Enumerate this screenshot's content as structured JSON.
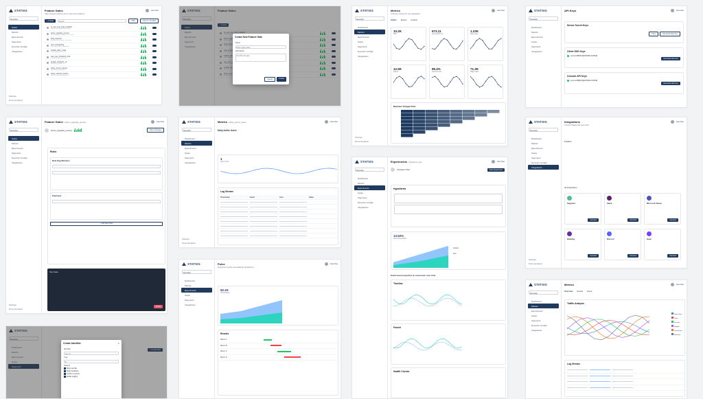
{
  "brand": {
    "name": "STATSIG"
  },
  "common": {
    "project_select": "Develop",
    "user_name": "Jane Doe",
    "user_role": "Admin",
    "settings": "Settings",
    "documentation": "Documentation"
  },
  "nav": [
    "Dashboard",
    "Metrics",
    "Experiments",
    "Gates",
    "Segments",
    "Dynamic Configs",
    "Integrations"
  ],
  "feature_gates": {
    "title": "Feature Gates",
    "subtitle": "Gate a feature behind a set of rules and conditions",
    "create_label": "+ Create",
    "search_placeholder": "Search...",
    "filter_label": "Filter",
    "sort_label": "Sort by: Created",
    "items": [
      {
        "name": "is_new_pay_load_enabled",
        "desc": "Enable new payload handling"
      },
      {
        "name": "show_upgrade_prompt",
        "desc": "Show upgrade prompt to free users"
      },
      {
        "name": "beta_features",
        "desc": "Enable beta features for testers"
      },
      {
        "name": "new_onboarding",
        "desc": "New onboarding experience"
      },
      {
        "name": "enable_dark_mode",
        "desc": "Dark mode for all users"
      },
      {
        "name": "use_new_checkout_flow",
        "desc": "Checkout flow redesign"
      },
      {
        "name": "enable_analytics_v2",
        "desc": "Analytics pipeline v2"
      },
      {
        "name": "show_promo_banner",
        "desc": "Holiday promo banner"
      },
      {
        "name": "show_referral_system",
        "desc": "Referral system entry point"
      }
    ]
  },
  "create_gate_modal": {
    "title": "Create New Feature Gate",
    "name_label": "Name",
    "name_placeholder": "Enter a gate name",
    "desc_label": "Description",
    "desc_placeholder": "Describe this gate",
    "cancel": "Cancel",
    "create": "Create"
  },
  "gate_detail": {
    "title": "Feature Gates",
    "crumb": "/ show_upgrade_prompt",
    "name": "show_upgrade_prompt",
    "save": "Save Changes",
    "rules_title": "Rules",
    "rule1": "Beta Flag Members",
    "rule2": "Employee",
    "add_rule": "+ Add New Rule",
    "console_title": "Test Gate",
    "console_btn": "Check"
  },
  "metrics": {
    "title": "Metrics",
    "subtitle": "Track key metrics for your application",
    "tabs": [
      "Charts",
      "Events",
      "Custom"
    ],
    "kpis": [
      {
        "value": "10.2K",
        "label": "DAU"
      },
      {
        "value": "573.11",
        "label": "Avg session (s)"
      },
      {
        "value": "1.23K",
        "label": "New users"
      },
      {
        "value": "12.5K",
        "label": "Events"
      },
      {
        "value": "95.4%",
        "label": "Success rate"
      },
      {
        "value": "71.3K",
        "label": "Page views"
      }
    ],
    "retention_title": "Retention Triangle Chart"
  },
  "sdk_keys": {
    "title": "API Keys",
    "server_title": "Server Secret Keys",
    "client_title": "Client SDK Keys",
    "console_title": "Console API Keys",
    "generate": "Generate New Key",
    "copy": "Copy",
    "key_sample": "secret-2xB9kfL0Q8vZTa81mXnP0qR"
  },
  "metric_detail": {
    "title": "Metrics",
    "crumb": "/ daily_active_users",
    "name": "Daily Active Users",
    "value": "1",
    "value_label": "User Count",
    "log_title": "Log Stream",
    "log_cols": [
      "Timestamp",
      "Event",
      "User",
      "Value"
    ]
  },
  "integrations": {
    "title": "Integrations",
    "subtitle": "Connect Statsig with your tools",
    "enabled": "Enabled",
    "all": "All Integrations",
    "cards": [
      {
        "name": "Segment",
        "color": "#52bd95"
      },
      {
        "name": "Slack",
        "color": "#611f69"
      },
      {
        "name": "Microsoft Teams",
        "color": "#4b53bc"
      },
      {
        "name": "Datadog",
        "color": "#632ca6"
      },
      {
        "name": "Discord",
        "color": "#5865f2"
      },
      {
        "name": "Heap",
        "color": "#7e3cff"
      }
    ],
    "connect": "Connect"
  },
  "experiment": {
    "title": "Experiments",
    "crumb": "/ checkout_test",
    "name": "Checkout Test",
    "start": "Start Experiment",
    "hypothesis_title": "Hypothesis",
    "lift_value": "13.52%",
    "lift_label": "Lift in conversions",
    "variant_a": "Control",
    "variant_b": "Test",
    "section_title": "Event-level properties & conversion over time",
    "timeline_title": "Timeline",
    "funnel_title": "Funnel",
    "health_title": "Health Checks"
  },
  "pulse": {
    "title": "Pulse",
    "subtitle": "Experiment results and statistical significance",
    "value": "82.2K",
    "value_label": "Conversions",
    "results_title": "Results",
    "metrics_rows": [
      "Metric A",
      "Metric B",
      "Metric C",
      "Metric D"
    ]
  },
  "traffic": {
    "title": "Metrics",
    "chart_title": "Traffic Analysis",
    "tabs": [
      "Overview",
      "Events",
      "Users"
    ],
    "log_title": "Log Stream",
    "legend": [
      "Page Views",
      "Clicks",
      "Sessions",
      "Signups",
      "Conversions",
      "Retention"
    ]
  },
  "create_segment": {
    "title": "Create Identifier",
    "id_label": "Identifier",
    "id_value": "user_id",
    "type_label": "Type",
    "type_value": "ID",
    "options_label": "Options",
    "opts": [
      "Allow override",
      "Sticky bucketing",
      "Include in exports",
      "Enable logging"
    ],
    "create": "+ Create New"
  }
}
